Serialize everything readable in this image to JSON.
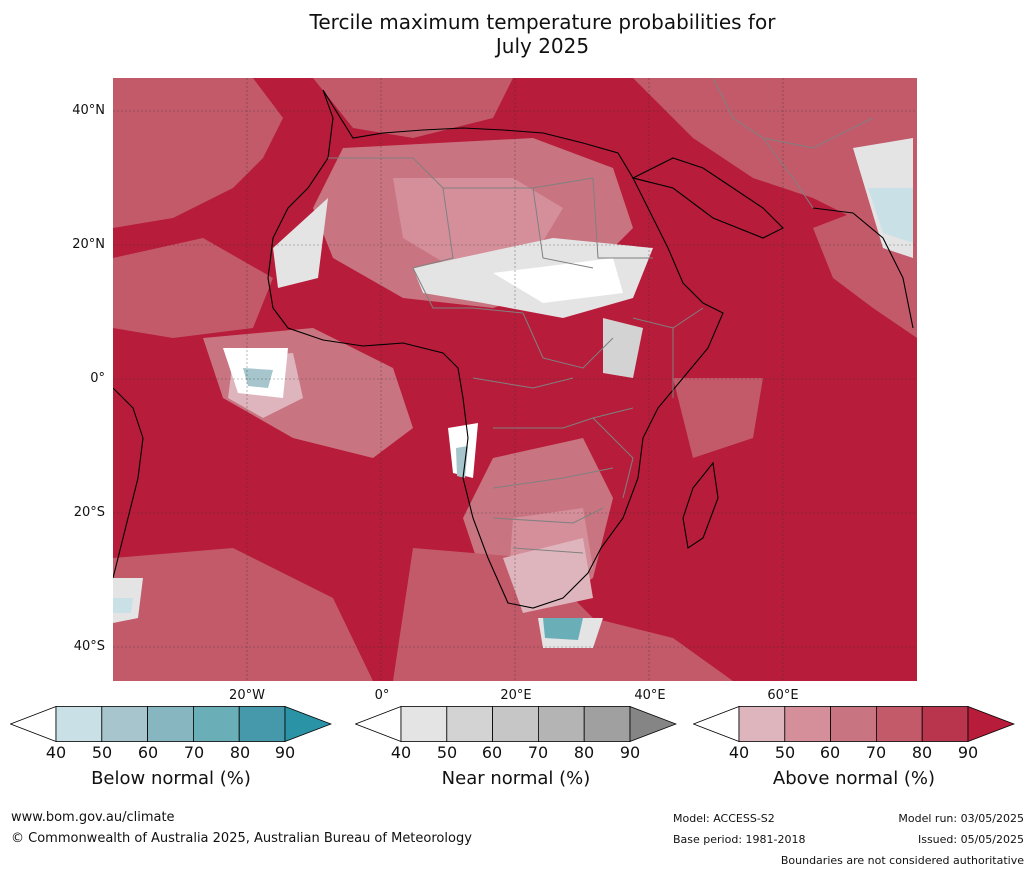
{
  "title_line1": "Tercile maximum temperature probabilities for",
  "title_line2": "July 2025",
  "lat_labels": [
    "40°N",
    "20°N",
    "0°",
    "20°S",
    "40°S"
  ],
  "lon_labels": [
    "20°W",
    "0°",
    "20°E",
    "40°E",
    "60°E"
  ],
  "colorbars": [
    {
      "label": "Below normal (%)",
      "ticks": [
        "40",
        "50",
        "60",
        "70",
        "80",
        "90"
      ],
      "colors": [
        "#ffffff",
        "#c9e1e6",
        "#a6c5cc",
        "#88b6c0",
        "#6aaeb8",
        "#4599aa",
        "#2b93a6"
      ]
    },
    {
      "label": "Near normal (%)",
      "ticks": [
        "40",
        "50",
        "60",
        "70",
        "80",
        "90"
      ],
      "colors": [
        "#ffffff",
        "#e4e4e4",
        "#d3d3d3",
        "#c6c6c6",
        "#b4b4b4",
        "#a0a0a0",
        "#858585"
      ]
    },
    {
      "label": "Above normal (%)",
      "ticks": [
        "40",
        "50",
        "60",
        "70",
        "80",
        "90"
      ],
      "colors": [
        "#ffffff",
        "#dfb5bd",
        "#d48f9a",
        "#c97481",
        "#c25a6a",
        "#b9354e",
        "#b71c3a"
      ]
    }
  ],
  "footer": {
    "url": "www.bom.gov.au/climate",
    "copyright": "© Commonwealth of Australia 2025, Australian Bureau of Meteorology",
    "model": "Model: ACCESS-S2",
    "base_period": "Base period: 1981-2018",
    "model_run": "Model run: 03/05/2025",
    "issued": "Issued: 05/05/2025",
    "disclaimer": "Boundaries are not considered authoritative"
  }
}
